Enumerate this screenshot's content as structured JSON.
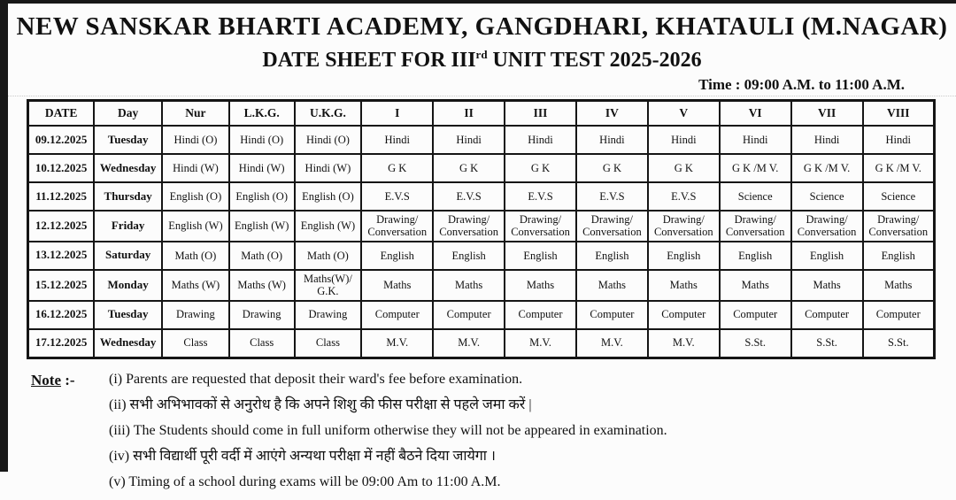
{
  "header": {
    "title": "NEW SANSKAR BHARTI ACADEMY, GANGDHARI, KHATAULI (M.NAGAR)",
    "subtitle_prefix": "DATE SHEET FOR III",
    "subtitle_sup": "rd",
    "subtitle_suffix": " UNIT TEST 2025-2026",
    "time": "Time : 09:00 A.M. to 11:00 A.M."
  },
  "table": {
    "columns": [
      "DATE",
      "Day",
      "Nur",
      "L.K.G.",
      "U.K.G.",
      "I",
      "II",
      "III",
      "IV",
      "V",
      "VI",
      "VII",
      "VIII"
    ],
    "rows": [
      {
        "date": "09.12.2025",
        "day": "Tuesday",
        "subjects": [
          "Hindi (O)",
          "Hindi (O)",
          "Hindi (O)",
          "Hindi",
          "Hindi",
          "Hindi",
          "Hindi",
          "Hindi",
          "Hindi",
          "Hindi",
          "Hindi"
        ]
      },
      {
        "date": "10.12.2025",
        "day": "Wednesday",
        "subjects": [
          "Hindi (W)",
          "Hindi (W)",
          "Hindi (W)",
          "G K",
          "G K",
          "G K",
          "G K",
          "G K",
          "G K /M V.",
          "G K /M V.",
          "G K /M V."
        ]
      },
      {
        "date": "11.12.2025",
        "day": "Thursday",
        "subjects": [
          "English (O)",
          "English (O)",
          "English (O)",
          "E.V.S",
          "E.V.S",
          "E.V.S",
          "E.V.S",
          "E.V.S",
          "Science",
          "Science",
          "Science"
        ]
      },
      {
        "date": "12.12.2025",
        "day": "Friday",
        "subjects": [
          "English (W)",
          "English (W)",
          "English (W)",
          "Drawing/ Conversation",
          "Drawing/ Conversation",
          "Drawing/ Conversation",
          "Drawing/ Conversation",
          "Drawing/ Conversation",
          "Drawing/ Conversation",
          "Drawing/ Conversation",
          "Drawing/ Conversation"
        ]
      },
      {
        "date": "13.12.2025",
        "day": "Saturday",
        "subjects": [
          "Math (O)",
          "Math (O)",
          "Math (O)",
          "English",
          "English",
          "English",
          "English",
          "English",
          "English",
          "English",
          "English"
        ]
      },
      {
        "date": "15.12.2025",
        "day": "Monday",
        "subjects": [
          "Maths (W)",
          "Maths (W)",
          "Maths(W)/ G.K.",
          "Maths",
          "Maths",
          "Maths",
          "Maths",
          "Maths",
          "Maths",
          "Maths",
          "Maths"
        ]
      },
      {
        "date": "16.12.2025",
        "day": "Tuesday",
        "subjects": [
          "Drawing",
          "Drawing",
          "Drawing",
          "Computer",
          "Computer",
          "Computer",
          "Computer",
          "Computer",
          "Computer",
          "Computer",
          "Computer"
        ]
      },
      {
        "date": "17.12.2025",
        "day": "Wednesday",
        "subjects": [
          "Class",
          "Class",
          "Class",
          "M.V.",
          "M.V.",
          "M.V.",
          "M.V.",
          "M.V.",
          "S.St.",
          "S.St.",
          "S.St."
        ]
      }
    ]
  },
  "notes": {
    "label_word": "Note",
    "label_rest": " :-",
    "items": [
      "(i) Parents are requested that deposit their ward's fee before examination.",
      "(ii) सभी अभिभावकों से अनुरोध है कि अपने शिशु की फीस परीक्षा से पहले जमा करें |",
      "(iii) The Students should come in full uniform otherwise they will not be appeared in examination.",
      "(iv) सभी विद्यार्थी पूरी वर्दी में आएंगे अन्यथा परीक्षा में नहीं बैठने दिया जायेगा ।",
      "(v) Timing of a school during exams will be 09:00 Am to 11:00 A.M."
    ]
  },
  "colors": {
    "text": "#111111",
    "border": "#151515",
    "edge_bar": "#181818",
    "page_bg": "#fcfcfc"
  }
}
